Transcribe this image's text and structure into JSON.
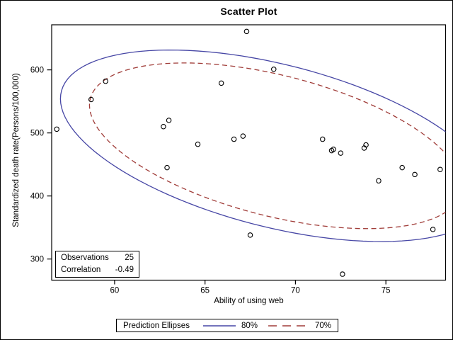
{
  "chart_data": {
    "type": "scatter",
    "title": "Scatter Plot",
    "xlabel": "Ability of using web",
    "ylabel": "Standardized death rate(Persons/100,000)",
    "xlim": [
      56.52,
      78.3
    ],
    "ylim": [
      266.5,
      671.5
    ],
    "xticks": [
      60,
      65,
      70,
      75
    ],
    "yticks": [
      300,
      400,
      500,
      600
    ],
    "grid": false,
    "marker": {
      "shape": "open-circle",
      "color": "#000000"
    },
    "points": [
      [
        56.8,
        506
      ],
      [
        58.7,
        553
      ],
      [
        59.5,
        582
      ],
      [
        62.7,
        510
      ],
      [
        62.9,
        445
      ],
      [
        63.0,
        520
      ],
      [
        64.6,
        482
      ],
      [
        65.9,
        579
      ],
      [
        66.6,
        490
      ],
      [
        67.1,
        495
      ],
      [
        67.3,
        661
      ],
      [
        67.5,
        338
      ],
      [
        68.8,
        601
      ],
      [
        71.5,
        490
      ],
      [
        72.0,
        472
      ],
      [
        72.1,
        474
      ],
      [
        72.5,
        468
      ],
      [
        72.6,
        276
      ],
      [
        73.8,
        476
      ],
      [
        73.9,
        481
      ],
      [
        74.6,
        424
      ],
      [
        75.9,
        445
      ],
      [
        76.6,
        434
      ],
      [
        77.6,
        347
      ],
      [
        78.0,
        442
      ]
    ],
    "ellipses": {
      "mean": [
        68.9,
        479.6
      ],
      "std": [
        6.5,
        83
      ],
      "correlation": -0.49,
      "levels": [
        {
          "label": "80%",
          "k": 1.83,
          "color": "#4646A5",
          "dash": null
        },
        {
          "label": "70%",
          "k": 1.583,
          "color": "#A03C38",
          "dash": [
            7,
            4.5
          ]
        }
      ]
    },
    "legend": {
      "title": "Prediction Ellipses",
      "position": "bottom"
    },
    "inset": {
      "rows": [
        {
          "label": "Observations",
          "value": "25"
        },
        {
          "label": "Correlation",
          "value": "-0.49"
        }
      ]
    }
  }
}
